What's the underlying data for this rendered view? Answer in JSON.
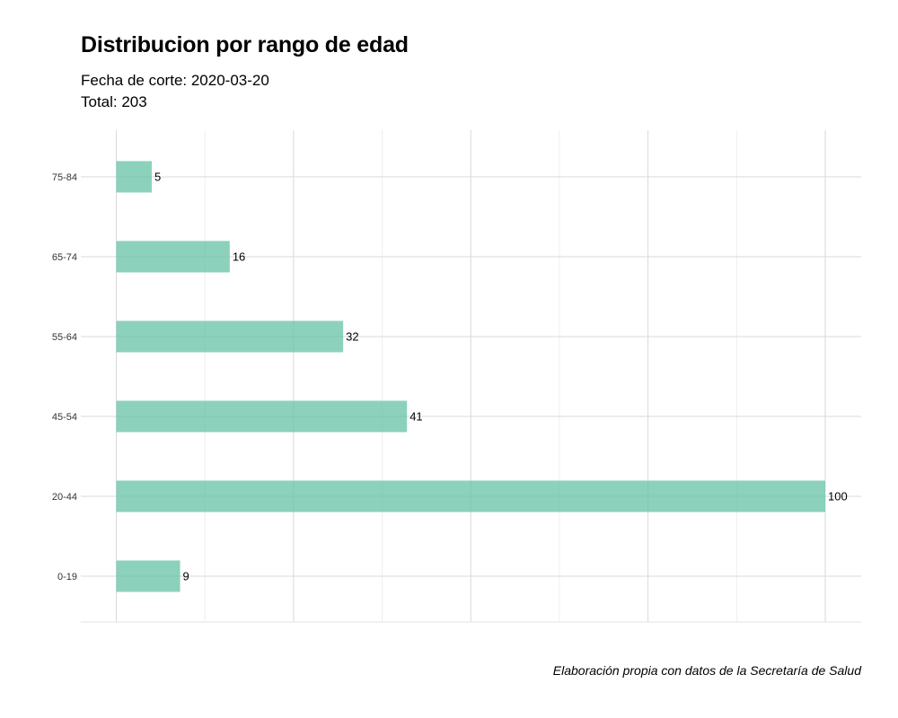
{
  "chart_data": {
    "type": "bar",
    "orientation": "horizontal",
    "title": "Distribucion por rango de edad",
    "subtitle_lines": [
      "Fecha de corte: 2020-03-20",
      "Total: 203"
    ],
    "caption": "Elaboración propia con datos de la Secretaría de Salud",
    "categories": [
      "0-19",
      "20-44",
      "45-54",
      "55-64",
      "65-74",
      "75-84"
    ],
    "values": [
      9,
      100,
      41,
      32,
      16,
      5
    ],
    "xlim": [
      0,
      105
    ],
    "grid": true,
    "bar_color": "#66c2a5"
  }
}
